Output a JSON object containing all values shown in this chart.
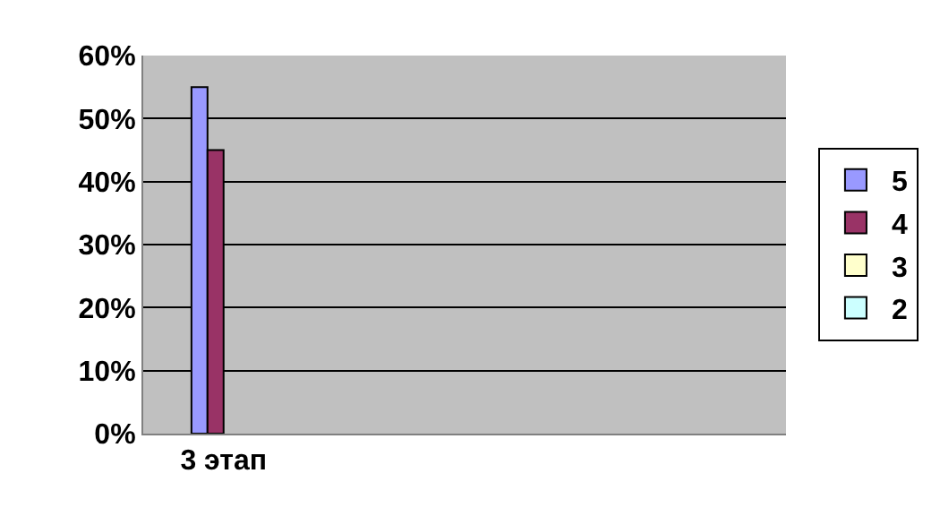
{
  "chart_data": {
    "type": "bar",
    "categories": [
      "3 этап",
      null,
      null,
      null
    ],
    "series": [
      {
        "name": "5",
        "color": "#9999ff",
        "values": [
          55,
          null,
          null,
          null
        ]
      },
      {
        "name": "4",
        "color": "#993366",
        "values": [
          45,
          null,
          null,
          null
        ]
      },
      {
        "name": "3",
        "color": "#ffffcc",
        "values": [
          null,
          null,
          null,
          null
        ]
      },
      {
        "name": "2",
        "color": "#ccffff",
        "values": [
          null,
          null,
          null,
          null
        ]
      }
    ],
    "ylim": [
      0,
      60
    ],
    "yticks": [
      {
        "value": 0,
        "label": "0%"
      },
      {
        "value": 10,
        "label": "10%"
      },
      {
        "value": 20,
        "label": "20%"
      },
      {
        "value": 30,
        "label": "30%"
      },
      {
        "value": 40,
        "label": "40%"
      },
      {
        "value": 50,
        "label": "50%"
      },
      {
        "value": 60,
        "label": "60%"
      }
    ],
    "grid": "y",
    "legend": "right"
  }
}
